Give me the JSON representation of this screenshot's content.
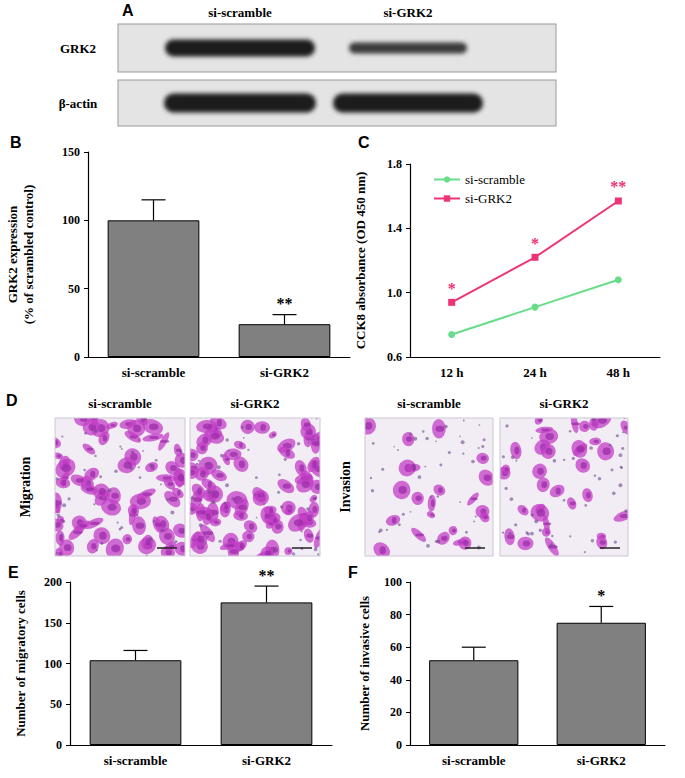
{
  "panel_letters": [
    "A",
    "B",
    "C",
    "D",
    "E",
    "F"
  ],
  "blot": {
    "lanes": [
      "si-scramble",
      "si-GRK2"
    ],
    "rows": [
      "GRK2",
      "β-actin"
    ]
  },
  "images": {
    "lanes": [
      "si-scramble",
      "si-GRK2"
    ],
    "assays": [
      "Migration",
      "Invasion"
    ]
  },
  "chart_data": [
    {
      "type": "bar",
      "categories": [
        "si-scramble",
        "si-GRK2"
      ],
      "values": [
        100,
        24
      ],
      "errors": [
        15,
        7
      ],
      "color": "#808080",
      "ylabel": "GRK2 expression\n(% of scrambled control)",
      "ylim": [
        0,
        150
      ],
      "yticks": [
        0,
        50,
        100,
        150
      ],
      "annotations": [
        {
          "category": "si-GRK2",
          "text": "**"
        }
      ]
    },
    {
      "type": "line",
      "categories": [
        "12 h",
        "24 h",
        "48 h"
      ],
      "series": [
        {
          "name": "si-scramble",
          "color": "#66dd88",
          "marker": "circle",
          "values": [
            0.74,
            0.91,
            1.08
          ]
        },
        {
          "name": "si-GRK2",
          "color": "#ee3377",
          "marker": "square",
          "values": [
            0.94,
            1.22,
            1.57
          ]
        }
      ],
      "ylabel": "CCK8 absorbance (OD 450 nm)",
      "ylim": [
        0.6,
        1.8
      ],
      "yticks": [
        0.6,
        {
          "value": 1,
          "label": "1.0"
        },
        1.4,
        1.8
      ],
      "legend": "upper left",
      "annotations": [
        {
          "category": "12 h",
          "series": "si-GRK2",
          "text": "*"
        },
        {
          "category": "24 h",
          "series": "si-GRK2",
          "text": "*"
        },
        {
          "category": "48 h",
          "series": "si-GRK2",
          "text": "**"
        }
      ]
    },
    {
      "type": "bar",
      "categories": [
        "si-scramble",
        "si-GRK2"
      ],
      "values": [
        104,
        175
      ],
      "errors": [
        12,
        20
      ],
      "color": "#808080",
      "ylabel": "Number of migratory cells",
      "ylim": [
        0,
        200
      ],
      "yticks": [
        0,
        50,
        100,
        150,
        200
      ],
      "annotations": [
        {
          "category": "si-GRK2",
          "text": "**"
        }
      ]
    },
    {
      "type": "bar",
      "categories": [
        "si-scramble",
        "si-GRK2"
      ],
      "values": [
        52,
        75
      ],
      "errors": [
        8,
        10
      ],
      "color": "#808080",
      "ylabel": "Number of invasive cells",
      "ylim": [
        0,
        100
      ],
      "yticks": [
        0,
        20,
        40,
        60,
        80,
        100
      ],
      "annotations": [
        {
          "category": "si-GRK2",
          "text": "*"
        }
      ]
    }
  ]
}
